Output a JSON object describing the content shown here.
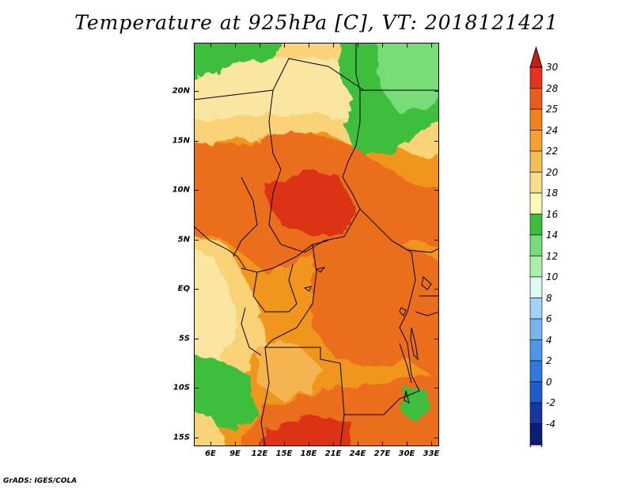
{
  "title": "Temperature at 925hPa [C], VT: 2018121421",
  "credit": "GrADS: IGES/COLA",
  "map": {
    "lat_labels": [
      "20N",
      "15N",
      "10N",
      "5N",
      "EQ",
      "5S",
      "10S",
      "15S"
    ],
    "lon_labels": [
      "6E",
      "9E",
      "12E",
      "15E",
      "18E",
      "21E",
      "24E",
      "27E",
      "30E",
      "33E"
    ],
    "colors": {
      "level_16_18": "#3cbe3c",
      "level_14_16": "#78dc78",
      "level_18_20": "#fae6a0",
      "level_20_22": "#fad278",
      "level_22_24": "#f5b450",
      "level_24_25": "#f0961e",
      "level_25_28": "#eb6e1e",
      "level_28_30": "#dc3214",
      "level_30_plus": "#c81e14"
    }
  },
  "colorbar": {
    "labels": [
      "30",
      "28",
      "25",
      "24",
      "22",
      "20",
      "18",
      "16",
      "14",
      "12",
      "10",
      "8",
      "6",
      "4",
      "2",
      "0",
      "-2",
      "-4"
    ],
    "colors": [
      "#e8321e",
      "#eb5a1e",
      "#f0821e",
      "#f5a032",
      "#f5be55",
      "#fadc8c",
      "#fafab4",
      "#3cbe3c",
      "#78dc78",
      "#aaf0aa",
      "#dcfaf0",
      "#a0d2fa",
      "#78b4f0",
      "#5096e6",
      "#3278dc",
      "#1e5ac8",
      "#1438a0",
      "#0a1e78"
    ],
    "top_arrow_color": "#c81e14",
    "bottom_arrow_color": "#ebe6ff"
  }
}
